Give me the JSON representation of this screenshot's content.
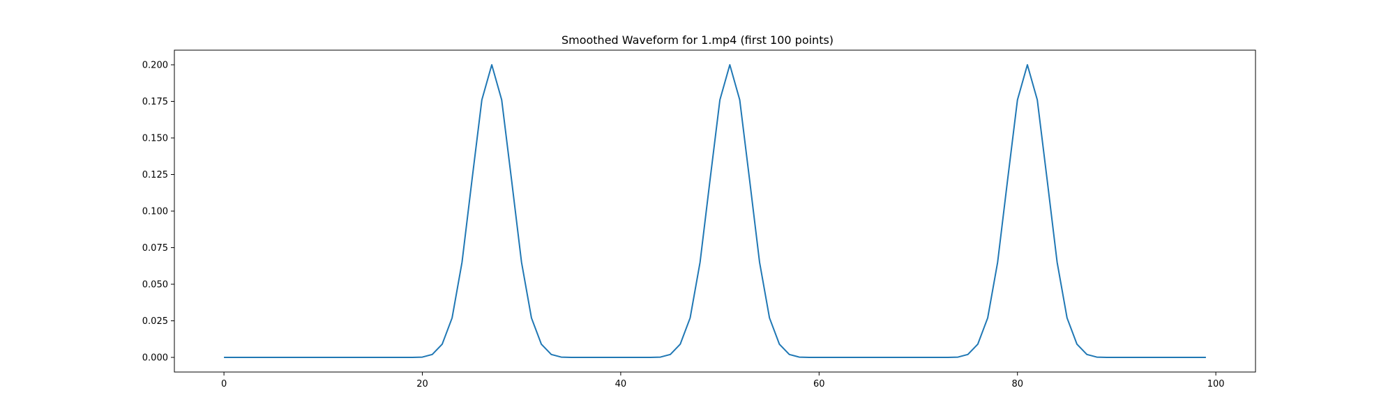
{
  "chart_data": {
    "type": "line",
    "title": "Smoothed Waveform for 1.mp4 (first 100 points)",
    "xlabel": "",
    "ylabel": "",
    "xlim": [
      -5,
      104
    ],
    "ylim": [
      -0.01,
      0.21
    ],
    "xticks": [
      0,
      20,
      40,
      60,
      80,
      100
    ],
    "xtick_labels": [
      "0",
      "20",
      "40",
      "60",
      "80",
      "100"
    ],
    "yticks": [
      0.0,
      0.025,
      0.05,
      0.075,
      0.1,
      0.125,
      0.15,
      0.175,
      0.2
    ],
    "ytick_labels": [
      "0.000",
      "0.025",
      "0.050",
      "0.075",
      "0.100",
      "0.125",
      "0.150",
      "0.175",
      "0.200"
    ],
    "grid": false,
    "legend": null,
    "series": [
      {
        "color": "#1f77b4",
        "x": [
          0,
          1,
          2,
          3,
          4,
          5,
          6,
          7,
          8,
          9,
          10,
          11,
          12,
          13,
          14,
          15,
          16,
          17,
          18,
          19,
          20,
          21,
          22,
          23,
          24,
          25,
          26,
          27,
          28,
          29,
          30,
          31,
          32,
          33,
          34,
          35,
          36,
          37,
          38,
          39,
          40,
          41,
          42,
          43,
          44,
          45,
          46,
          47,
          48,
          49,
          50,
          51,
          52,
          53,
          54,
          55,
          56,
          57,
          58,
          59,
          60,
          61,
          62,
          63,
          64,
          65,
          66,
          67,
          68,
          69,
          70,
          71,
          72,
          73,
          74,
          75,
          76,
          77,
          78,
          79,
          80,
          81,
          82,
          83,
          84,
          85,
          86,
          87,
          88,
          89,
          90,
          91,
          92,
          93,
          94,
          95,
          96,
          97,
          98,
          99
        ],
        "y": [
          0,
          0,
          0,
          0,
          0,
          0,
          0,
          0,
          0,
          0,
          0,
          0,
          0,
          0,
          0,
          0,
          0,
          0,
          0,
          0,
          0.0002,
          0.002,
          0.009,
          0.027,
          0.065,
          0.121,
          0.176,
          0.2,
          0.176,
          0.121,
          0.065,
          0.027,
          0.009,
          0.002,
          0.0002,
          0,
          0,
          0,
          0,
          0,
          0,
          0,
          0,
          0,
          0.0002,
          0.002,
          0.009,
          0.027,
          0.065,
          0.121,
          0.176,
          0.2,
          0.176,
          0.121,
          0.065,
          0.027,
          0.009,
          0.002,
          0.0002,
          0,
          0,
          0,
          0,
          0,
          0,
          0,
          0,
          0,
          0,
          0,
          0,
          0,
          0,
          0,
          0.0002,
          0.002,
          0.009,
          0.027,
          0.065,
          0.121,
          0.176,
          0.2,
          0.176,
          0.121,
          0.065,
          0.027,
          0.009,
          0.002,
          0.0002,
          0,
          0,
          0,
          0,
          0,
          0,
          0,
          0,
          0,
          0,
          0
        ]
      }
    ]
  }
}
